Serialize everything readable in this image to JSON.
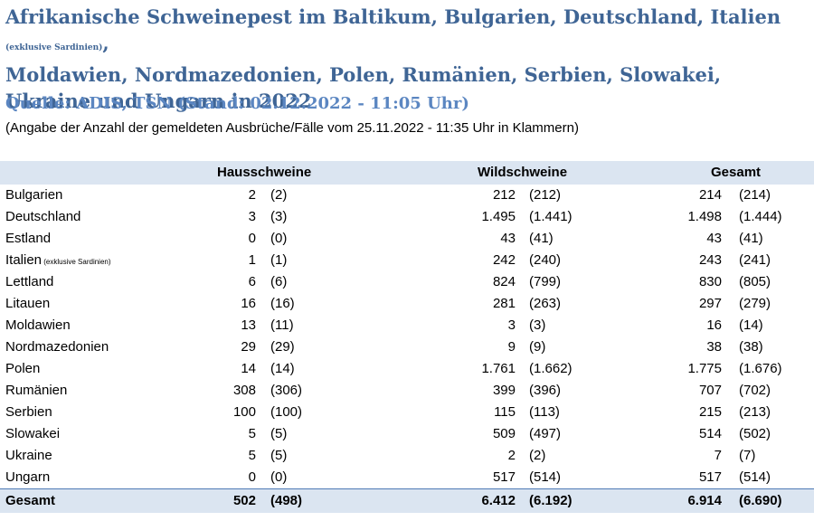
{
  "title": {
    "part1": "Afrikanische Schweinepest im Baltikum, Bulgarien, Deutschland, Italien ",
    "part1_small": "(exklusive Sardinien)",
    "part1_after": ",",
    "part2": "Moldawien, Nordmazedonien, Polen, Rumänien, Serbien, Slowakei, Ukraine und Ungarn in 2022"
  },
  "source": "Quelle: ADIS, TSN (Stand: 02.12.2022 - 11:05 Uhr)",
  "note": "(Angabe der Anzahl der gemeldeten Ausbrüche/Fälle vom 25.11.2022 - 11:35 Uhr in Klammern)",
  "columns": {
    "haus": "Hausschweine",
    "wild": "Wildschweine",
    "gesamt": "Gesamt"
  },
  "rows": [
    {
      "country": "Bulgarien",
      "country_small": "",
      "h": "2",
      "hp": "(2)",
      "w": "212",
      "wp": "(212)",
      "g": "214",
      "gp": "(214)"
    },
    {
      "country": "Deutschland",
      "country_small": "",
      "h": "3",
      "hp": "(3)",
      "w": "1.495",
      "wp": "(1.441)",
      "g": "1.498",
      "gp": "(1.444)"
    },
    {
      "country": "Estland",
      "country_small": "",
      "h": "0",
      "hp": "(0)",
      "w": "43",
      "wp": "(41)",
      "g": "43",
      "gp": "(41)"
    },
    {
      "country": "Italien",
      "country_small": " (exklusive Sardinien)",
      "h": "1",
      "hp": "(1)",
      "w": "242",
      "wp": "(240)",
      "g": "243",
      "gp": "(241)"
    },
    {
      "country": "Lettland",
      "country_small": "",
      "h": "6",
      "hp": "(6)",
      "w": "824",
      "wp": "(799)",
      "g": "830",
      "gp": "(805)"
    },
    {
      "country": "Litauen",
      "country_small": "",
      "h": "16",
      "hp": "(16)",
      "w": "281",
      "wp": "(263)",
      "g": "297",
      "gp": "(279)"
    },
    {
      "country": "Moldawien",
      "country_small": "",
      "h": "13",
      "hp": "(11)",
      "w": "3",
      "wp": "(3)",
      "g": "16",
      "gp": "(14)"
    },
    {
      "country": "Nordmazedonien",
      "country_small": "",
      "h": "29",
      "hp": "(29)",
      "w": "9",
      "wp": "(9)",
      "g": "38",
      "gp": "(38)"
    },
    {
      "country": "Polen",
      "country_small": "",
      "h": "14",
      "hp": "(14)",
      "w": "1.761",
      "wp": "(1.662)",
      "g": "1.775",
      "gp": "(1.676)"
    },
    {
      "country": "Rumänien",
      "country_small": "",
      "h": "308",
      "hp": "(306)",
      "w": "399",
      "wp": "(396)",
      "g": "707",
      "gp": "(702)"
    },
    {
      "country": "Serbien",
      "country_small": "",
      "h": "100",
      "hp": "(100)",
      "w": "115",
      "wp": "(113)",
      "g": "215",
      "gp": "(213)"
    },
    {
      "country": "Slowakei",
      "country_small": "",
      "h": "5",
      "hp": "(5)",
      "w": "509",
      "wp": "(497)",
      "g": "514",
      "gp": "(502)"
    },
    {
      "country": "Ukraine",
      "country_small": "",
      "h": "5",
      "hp": "(5)",
      "w": "2",
      "wp": "(2)",
      "g": "7",
      "gp": "(7)"
    },
    {
      "country": "Ungarn",
      "country_small": "",
      "h": "0",
      "hp": "(0)",
      "w": "517",
      "wp": "(514)",
      "g": "517",
      "gp": "(514)"
    }
  ],
  "total": {
    "label": "Gesamt",
    "h": "502",
    "hp": "(498)",
    "w": "6.412",
    "wp": "(6.192)",
    "g": "6.914",
    "gp": "(6.690)"
  }
}
